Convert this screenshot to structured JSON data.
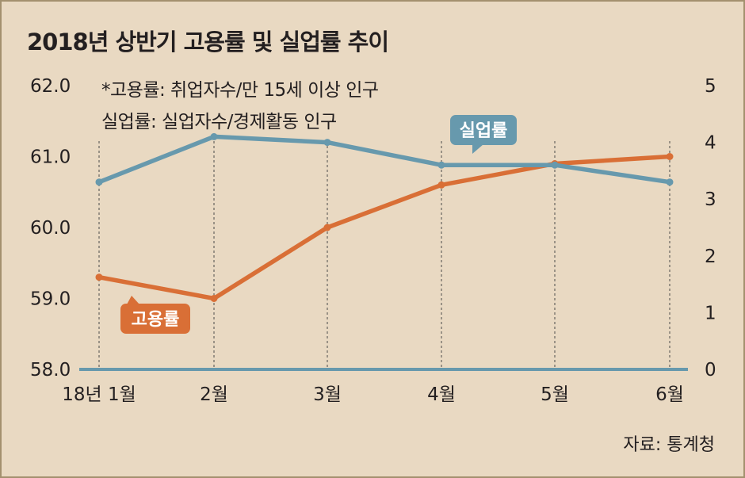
{
  "title": "2018년 상반기 고용률 및 실업률 추이",
  "notes": [
    "*고용률: 취업자수/만 15세 이상 인구",
    "실업률: 실업자수/경제활동 인구"
  ],
  "source": "자료: 통계청",
  "colors": {
    "background": "#e9d9c2",
    "employment_rate": "#d96f36",
    "unemployment_rate": "#6799ad",
    "axis": "#6799ad"
  },
  "chart_data": {
    "type": "line",
    "categories": [
      "18년 1월",
      "2월",
      "3월",
      "4월",
      "5월",
      "6월"
    ],
    "series": [
      {
        "name": "고용률",
        "axis": "left",
        "color": "#d96f36",
        "values": [
          59.3,
          59.0,
          60.0,
          60.6,
          60.9,
          61.0
        ]
      },
      {
        "name": "실업률",
        "axis": "right",
        "color": "#6799ad",
        "values": [
          3.3,
          4.1,
          4.0,
          3.6,
          3.6,
          3.3
        ]
      }
    ],
    "y_left": {
      "min": 58.0,
      "max": 62.0,
      "ticks": [
        "62.0",
        "61.0",
        "60.0",
        "59.0",
        "58.0"
      ]
    },
    "y_right": {
      "min": 0,
      "max": 5,
      "ticks": [
        "5",
        "4",
        "3",
        "2",
        "1",
        "0"
      ]
    },
    "gridlines": "vertical dashed at categories",
    "legend": "inline labels"
  }
}
